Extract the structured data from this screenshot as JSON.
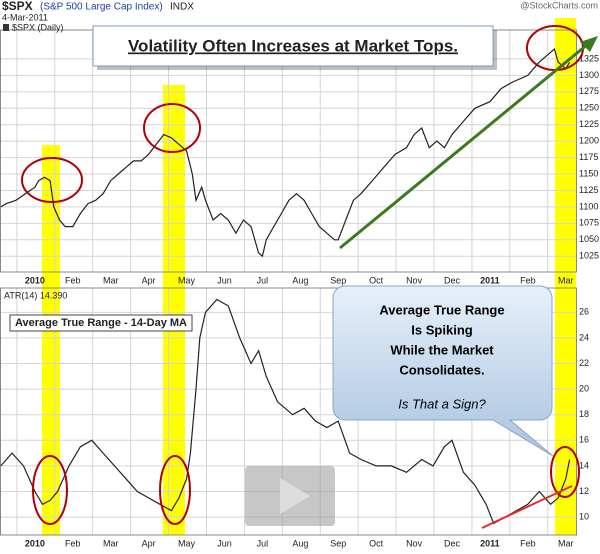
{
  "source": "@StockCharts.com",
  "chart_data": [
    {
      "type": "line",
      "title": "$SPX",
      "subtitle": "(S&P 500 Large Cap Index)",
      "exchange": "INDX",
      "date": "4-Mar-2011",
      "annotations": [
        "Volatility Often Increases at Market Tops."
      ],
      "x": [
        -0.9,
        -0.75,
        -0.5,
        -0.25,
        0,
        0.1,
        0.25,
        0.4,
        0.5,
        0.65,
        0.8,
        1.0,
        1.2,
        1.4,
        1.6,
        1.8,
        2.0,
        2.2,
        2.4,
        2.6,
        2.8,
        3.0,
        3.2,
        3.4,
        3.6,
        3.8,
        4.0,
        4.15,
        4.25,
        4.4,
        4.5,
        4.7,
        4.9,
        5.1,
        5.3,
        5.5,
        5.7,
        5.9,
        6.0,
        6.1,
        6.3,
        6.5,
        6.7,
        6.9,
        7.1,
        7.3,
        7.5,
        7.7,
        7.9,
        8.0,
        8.2,
        8.4,
        8.6,
        8.9,
        9.2,
        9.5,
        9.8,
        10.0,
        10.2,
        10.4,
        10.6,
        10.8,
        11.0,
        11.3,
        11.6,
        12.0,
        12.3,
        12.6,
        13.0,
        13.3,
        13.5,
        13.7,
        13.8,
        14.0,
        14.1
      ],
      "series": [
        {
          "name": "$SPX (Daily)",
          "color": "#222222",
          "values": [
            1100,
            1105,
            1110,
            1120,
            1130,
            1140,
            1145,
            1140,
            1100,
            1080,
            1070,
            1070,
            1090,
            1105,
            1110,
            1120,
            1140,
            1150,
            1160,
            1170,
            1170,
            1180,
            1195,
            1210,
            1205,
            1195,
            1185,
            1150,
            1110,
            1130,
            1110,
            1080,
            1090,
            1080,
            1060,
            1080,
            1070,
            1030,
            1025,
            1050,
            1070,
            1090,
            1110,
            1120,
            1110,
            1090,
            1070,
            1060,
            1050,
            1050,
            1080,
            1110,
            1120,
            1140,
            1160,
            1180,
            1190,
            1210,
            1220,
            1190,
            1200,
            1190,
            1210,
            1230,
            1250,
            1260,
            1280,
            1290,
            1300,
            1320,
            1330,
            1340,
            1320,
            1310,
            1320
          ]
        }
      ],
      "xlim": [
        -0.92,
        14.27
      ],
      "xticks": [
        {
          "value": 0,
          "label": "2010"
        },
        {
          "value": 1,
          "label": "Feb"
        },
        {
          "value": 2,
          "label": "Mar"
        },
        {
          "value": 3,
          "label": "Apr"
        },
        {
          "value": 4,
          "label": "May"
        },
        {
          "value": 5,
          "label": "Jun"
        },
        {
          "value": 6,
          "label": "Jul"
        },
        {
          "value": 7,
          "label": "Aug"
        },
        {
          "value": 8,
          "label": "Sep"
        },
        {
          "value": 9,
          "label": "Oct"
        },
        {
          "value": 10,
          "label": "Nov"
        },
        {
          "value": 11,
          "label": "Dec"
        },
        {
          "value": 12,
          "label": "2011"
        },
        {
          "value": 13,
          "label": "Feb"
        },
        {
          "value": 14,
          "label": "Mar"
        }
      ],
      "ylim": [
        1001,
        1369
      ],
      "yticks": [
        1025,
        1050,
        1075,
        1100,
        1125,
        1150,
        1175,
        1200,
        1225,
        1250,
        1275,
        1300,
        1325
      ],
      "grid": true
    },
    {
      "type": "line",
      "annotations": [
        "Average True Range - 14-Day MA",
        "Average True Range",
        "Is Spiking",
        "While the Market",
        "Consolidates.",
        "Is That a Sign?"
      ],
      "x": [
        -0.9,
        -0.6,
        -0.3,
        0,
        0.2,
        0.4,
        0.6,
        0.9,
        1.2,
        1.5,
        1.8,
        2.1,
        2.4,
        2.7,
        3.0,
        3.3,
        3.6,
        3.8,
        4.0,
        4.1,
        4.25,
        4.35,
        4.5,
        4.8,
        5.1,
        5.4,
        5.7,
        5.9,
        6.1,
        6.4,
        6.8,
        7.1,
        7.4,
        7.7,
        8.0,
        8.3,
        8.6,
        9.0,
        9.4,
        9.8,
        10.2,
        10.5,
        10.8,
        11.0,
        11.3,
        11.6,
        11.9,
        12.1,
        12.4,
        12.7,
        13.0,
        13.3,
        13.6,
        13.8,
        14.0,
        14.1
      ],
      "series": [
        {
          "name": "ATR(14) 14.390",
          "color": "#222222",
          "values": [
            14,
            15,
            14,
            12,
            11,
            11.3,
            12,
            14,
            15.5,
            16,
            15,
            14,
            13,
            12,
            11.5,
            11,
            10.5,
            11.5,
            13,
            15,
            20,
            24,
            26,
            27,
            26.5,
            24,
            22,
            23,
            21,
            19,
            18,
            18.5,
            17.5,
            17,
            17.5,
            15,
            14.5,
            14,
            14,
            13.5,
            14.5,
            14,
            15.5,
            16,
            13.5,
            12.5,
            11,
            9.5,
            10,
            10.5,
            11,
            12,
            11,
            11.5,
            13,
            14.5
          ]
        }
      ],
      "xlim": [
        -0.92,
        14.27
      ],
      "xticks": [
        {
          "value": 0,
          "label": "2010"
        },
        {
          "value": 1,
          "label": "Feb"
        },
        {
          "value": 2,
          "label": "Mar"
        },
        {
          "value": 3,
          "label": "Apr"
        },
        {
          "value": 4,
          "label": "May"
        },
        {
          "value": 5,
          "label": "Jun"
        },
        {
          "value": 6,
          "label": "Jul"
        },
        {
          "value": 7,
          "label": "Aug"
        },
        {
          "value": 8,
          "label": "Sep"
        },
        {
          "value": 9,
          "label": "Oct"
        },
        {
          "value": 10,
          "label": "Nov"
        },
        {
          "value": 11,
          "label": "Dec"
        },
        {
          "value": 12,
          "label": "2011"
        },
        {
          "value": 13,
          "label": "Feb"
        },
        {
          "value": 14,
          "label": "Mar"
        }
      ],
      "ylim": [
        8.6,
        27.9
      ],
      "yticks": [
        10,
        12,
        14,
        16,
        18,
        20,
        22,
        24,
        26
      ],
      "grid": true
    }
  ]
}
